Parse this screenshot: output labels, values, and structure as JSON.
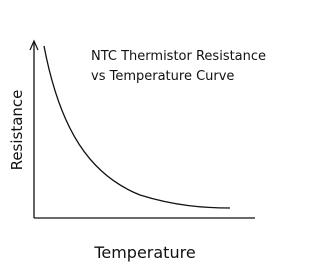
{
  "title": {
    "lines": [
      "NTC Thermistor Resistance",
      "vs Temperature Curve"
    ]
  },
  "axes": {
    "x_label": "Temperature",
    "y_label": "Resistance"
  }
}
